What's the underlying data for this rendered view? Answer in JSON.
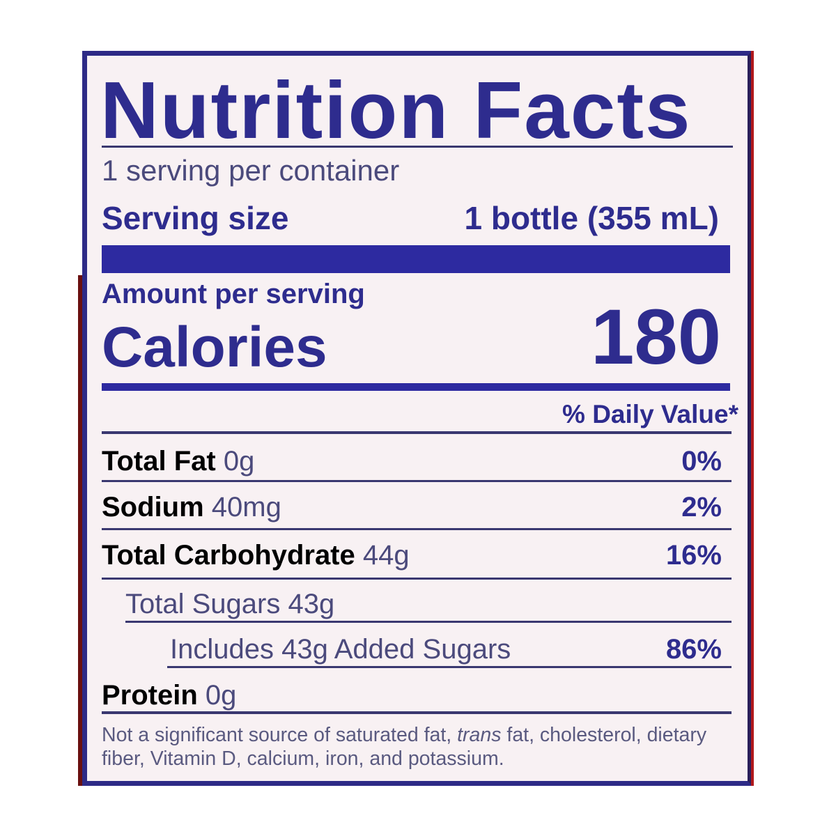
{
  "label": {
    "title": "Nutrition Facts",
    "servings_per_container": "1 serving per container",
    "serving_size_label": "Serving size",
    "serving_size_value": "1 bottle (355 mL)",
    "amount_per_serving": "Amount per serving",
    "calories_label": "Calories",
    "calories_value": "180",
    "daily_value_header": "% Daily Value*",
    "rows": [
      {
        "name": "Total Fat",
        "amount": "0g",
        "dv": "0%"
      },
      {
        "name": "Sodium",
        "amount": "40mg",
        "dv": "2%"
      },
      {
        "name": "Total Carbohydrate",
        "amount": "44g",
        "dv": "16%"
      },
      {
        "name": "Total Sugars 43g",
        "amount": "",
        "dv": ""
      },
      {
        "name": "Includes 43g Added Sugars",
        "amount": "",
        "dv": "86%"
      },
      {
        "name": "Protein",
        "amount": "0g",
        "dv": ""
      }
    ],
    "footnote_pre": "Not a significant source of saturated fat, ",
    "footnote_italic": "trans",
    "footnote_post": " fat, cholesterol, dietary fiber, Vitamin D, calcium, iron, and potassium."
  },
  "colors": {
    "ink": "#2e2c8e",
    "text_gray": "#4b4a7c",
    "background": "#f8f1f3"
  }
}
